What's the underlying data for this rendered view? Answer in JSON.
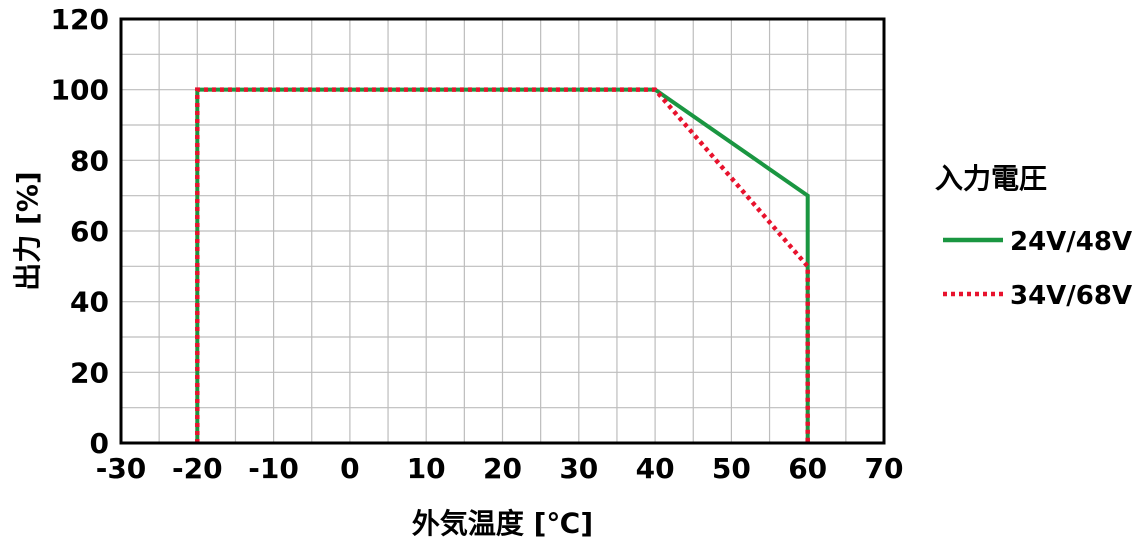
{
  "chart_data": {
    "type": "line",
    "xlabel": "外気温度 [℃]",
    "ylabel": "出力 [%]",
    "xlim": [
      -30,
      70
    ],
    "ylim": [
      0,
      120
    ],
    "x_ticks": [
      -30,
      -20,
      -10,
      0,
      10,
      20,
      30,
      40,
      50,
      60,
      70
    ],
    "y_ticks": [
      0,
      20,
      40,
      60,
      80,
      100,
      120
    ],
    "x_minor_step": 5,
    "y_minor_step": 10,
    "grid": true,
    "legend_title": "入力電圧",
    "legend_position": "right",
    "series": [
      {
        "name": "24V/48V",
        "color": "#1a9641",
        "style": "solid",
        "points": [
          [
            -20,
            0
          ],
          [
            -20,
            100
          ],
          [
            40,
            100
          ],
          [
            60,
            70
          ],
          [
            60,
            0
          ]
        ]
      },
      {
        "name": "34V/68V",
        "color": "#e8122d",
        "style": "dotted",
        "points": [
          [
            -20,
            0
          ],
          [
            -20,
            100
          ],
          [
            40,
            100
          ],
          [
            60,
            50
          ],
          [
            60,
            0
          ]
        ]
      }
    ]
  }
}
